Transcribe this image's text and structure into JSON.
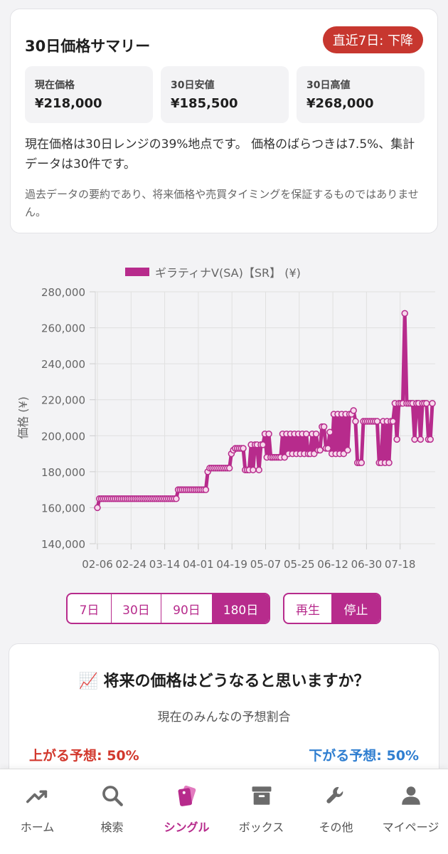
{
  "summary": {
    "title": "30日価格サマリー",
    "trend_badge": "直近7日: 下降",
    "stats": [
      {
        "label": "現在価格",
        "value": "¥218,000"
      },
      {
        "label": "30日安値",
        "value": "¥185,500"
      },
      {
        "label": "30日高値",
        "value": "¥268,000"
      }
    ],
    "description": "現在価格は30日レンジの39%地点です。 価格のばらつきは7.5%、集計データは30件です。",
    "note": "過去データの要約であり、将来価格や売買タイミングを保証するものではありません。"
  },
  "chart_data": {
    "type": "line",
    "legend": "ギラティナV(SA)【SR】 (¥)",
    "ylabel": "価格 (¥)",
    "ylim": [
      140000,
      280000
    ],
    "yticks": [
      "280,000",
      "260,000",
      "240,000",
      "220,000",
      "200,000",
      "180,000",
      "160,000",
      "140,000"
    ],
    "xticks": [
      "02-06",
      "02-24",
      "03-14",
      "04-01",
      "04-19",
      "05-07",
      "05-25",
      "06-12",
      "06-30",
      "07-18"
    ],
    "series_color": "#b72b8c",
    "series": [
      {
        "name": "ギラティナV(SA)【SR】 (¥)",
        "values": [
          160000,
          165000,
          165000,
          165000,
          165000,
          165000,
          165000,
          165000,
          165000,
          165000,
          165000,
          165000,
          165000,
          165000,
          165000,
          165000,
          165000,
          165000,
          165000,
          165000,
          165000,
          165000,
          165000,
          165000,
          165000,
          165000,
          165000,
          165000,
          165000,
          165000,
          165000,
          165000,
          165000,
          165000,
          165000,
          165000,
          165000,
          165000,
          165000,
          165000,
          165000,
          170000,
          170000,
          170000,
          170000,
          170000,
          170000,
          170000,
          170000,
          170000,
          170000,
          170000,
          170000,
          170000,
          170000,
          170000,
          180000,
          182000,
          182000,
          182000,
          182000,
          182000,
          182000,
          182000,
          182000,
          182000,
          182000,
          182000,
          190000,
          192000,
          193000,
          193000,
          193000,
          193000,
          193000,
          181000,
          181000,
          181000,
          195000,
          181000,
          195000,
          195000,
          181000,
          195000,
          195000,
          201000,
          188000,
          201000,
          188000,
          188000,
          188000,
          188000,
          188000,
          188000,
          201000,
          188000,
          201000,
          190000,
          201000,
          190000,
          201000,
          190000,
          201000,
          190000,
          201000,
          190000,
          201000,
          190000,
          190000,
          201000,
          190000,
          201000,
          192000,
          192000,
          205000,
          205000,
          193000,
          193000,
          202000,
          190000,
          212000,
          190000,
          212000,
          190000,
          212000,
          190000,
          212000,
          192000,
          212000,
          212000,
          214000,
          208000,
          185000,
          185000,
          185000,
          208000,
          208000,
          208000,
          208000,
          208000,
          208000,
          208000,
          208000,
          185000,
          185000,
          208000,
          185000,
          208000,
          185000,
          208000,
          208000,
          218000,
          198000,
          218000,
          218000,
          218000,
          268000,
          218000,
          218000,
          218000,
          218000,
          198000,
          218000,
          218000,
          198000,
          218000,
          218000,
          218000,
          198000,
          198000,
          218000
        ]
      }
    ]
  },
  "range_buttons": [
    {
      "label": "7日"
    },
    {
      "label": "30日"
    },
    {
      "label": "90日"
    },
    {
      "label": "180日",
      "active": true
    }
  ],
  "play_buttons": [
    {
      "label": "再生"
    },
    {
      "label": "停止",
      "active": true
    }
  ],
  "prediction": {
    "title": "📈 将来の価格はどうなると思いますか？",
    "subtitle": "現在のみんなの予想割合",
    "up_label": "上がる予想: 50%",
    "down_label": "下がる予想: 50%"
  },
  "nav": {
    "items": [
      {
        "label": "ホーム",
        "icon": "trending-up-icon"
      },
      {
        "label": "検索",
        "icon": "search-icon"
      },
      {
        "label": "シングル",
        "icon": "cards-icon",
        "active": true
      },
      {
        "label": "ボックス",
        "icon": "box-icon"
      },
      {
        "label": "その他",
        "icon": "wrench-icon"
      },
      {
        "label": "マイページ",
        "icon": "person-icon"
      }
    ]
  }
}
